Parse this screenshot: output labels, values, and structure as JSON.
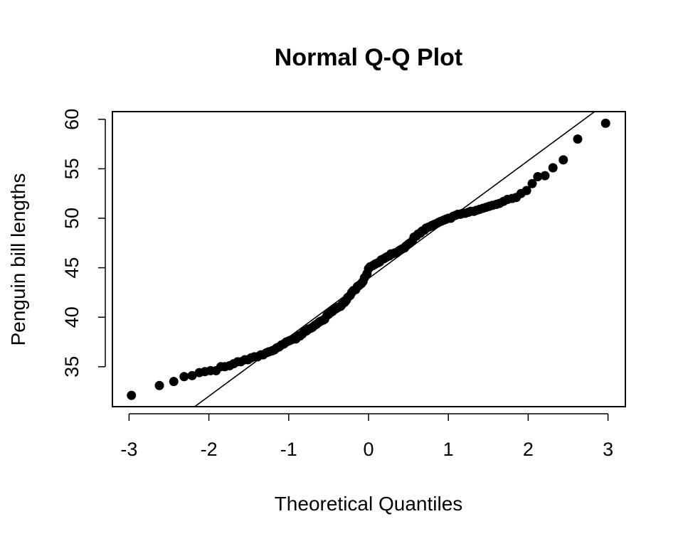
{
  "chart_data": {
    "type": "scatter",
    "title": "Normal Q-Q Plot",
    "xlabel": "Theoretical Quantiles",
    "ylabel": "Penguin bill lengths",
    "xlim": [
      -3.2,
      3.2
    ],
    "ylim": [
      31.0,
      60.7
    ],
    "x_ticks": [
      -3,
      -2,
      -1,
      0,
      1,
      2,
      3
    ],
    "y_ticks": [
      35,
      40,
      45,
      50,
      55,
      60
    ],
    "grid": false,
    "legend": "none",
    "reference_line": {
      "intercept": 43.92,
      "slope": 5.95
    },
    "series": [
      {
        "marker": "filled-circle",
        "color": "#000000",
        "points": [
          [
            -2.97,
            32.1
          ],
          [
            -2.62,
            33.1
          ],
          [
            -2.44,
            33.5
          ],
          [
            -2.31,
            34.0
          ],
          [
            -2.21,
            34.1
          ],
          [
            -2.12,
            34.4
          ],
          [
            -2.05,
            34.5
          ],
          [
            -1.98,
            34.6
          ],
          [
            -1.91,
            34.6
          ],
          [
            -1.85,
            35.0
          ],
          [
            -1.8,
            35.0
          ],
          [
            -1.74,
            35.1
          ],
          [
            -1.69,
            35.3
          ],
          [
            -1.64,
            35.5
          ],
          [
            -1.6,
            35.5
          ],
          [
            -1.55,
            35.7
          ],
          [
            -1.51,
            35.7
          ],
          [
            -1.47,
            35.9
          ],
          [
            -1.43,
            36.0
          ],
          [
            -1.39,
            36.0
          ],
          [
            -1.35,
            36.2
          ],
          [
            -1.32,
            36.2
          ],
          [
            -1.28,
            36.4
          ],
          [
            -1.25,
            36.5
          ],
          [
            -1.21,
            36.6
          ],
          [
            -1.18,
            36.7
          ],
          [
            -1.15,
            36.9
          ],
          [
            -1.12,
            37.0
          ],
          [
            -1.09,
            37.2
          ],
          [
            -1.06,
            37.3
          ],
          [
            -1.03,
            37.5
          ],
          [
            -1.0,
            37.6
          ],
          [
            -0.97,
            37.7
          ],
          [
            -0.94,
            37.8
          ],
          [
            -0.91,
            37.8
          ],
          [
            -0.88,
            38.1
          ],
          [
            -0.86,
            38.1
          ],
          [
            -0.83,
            38.3
          ],
          [
            -0.8,
            38.6
          ],
          [
            -0.78,
            38.6
          ],
          [
            -0.75,
            38.8
          ],
          [
            -0.72,
            38.9
          ],
          [
            -0.7,
            39.0
          ],
          [
            -0.67,
            39.2
          ],
          [
            -0.65,
            39.3
          ],
          [
            -0.62,
            39.5
          ],
          [
            -0.6,
            39.6
          ],
          [
            -0.57,
            39.7
          ],
          [
            -0.55,
            39.8
          ],
          [
            -0.52,
            40.2
          ],
          [
            -0.5,
            40.3
          ],
          [
            -0.47,
            40.5
          ],
          [
            -0.45,
            40.6
          ],
          [
            -0.42,
            40.8
          ],
          [
            -0.4,
            40.9
          ],
          [
            -0.38,
            41.0
          ],
          [
            -0.35,
            41.1
          ],
          [
            -0.33,
            41.3
          ],
          [
            -0.3,
            41.5
          ],
          [
            -0.28,
            41.7
          ],
          [
            -0.26,
            42.0
          ],
          [
            -0.23,
            42.2
          ],
          [
            -0.21,
            42.5
          ],
          [
            -0.19,
            42.7
          ],
          [
            -0.16,
            42.8
          ],
          [
            -0.14,
            43.1
          ],
          [
            -0.12,
            43.2
          ],
          [
            -0.09,
            43.4
          ],
          [
            -0.07,
            43.6
          ],
          [
            -0.05,
            44.0
          ],
          [
            -0.02,
            44.4
          ],
          [
            0.0,
            44.9
          ],
          [
            0.02,
            45.1
          ],
          [
            0.05,
            45.2
          ],
          [
            0.07,
            45.3
          ],
          [
            0.09,
            45.4
          ],
          [
            0.12,
            45.5
          ],
          [
            0.14,
            45.6
          ],
          [
            0.16,
            45.8
          ],
          [
            0.19,
            45.9
          ],
          [
            0.21,
            46.0
          ],
          [
            0.23,
            46.1
          ],
          [
            0.26,
            46.2
          ],
          [
            0.28,
            46.4
          ],
          [
            0.3,
            46.4
          ],
          [
            0.33,
            46.5
          ],
          [
            0.35,
            46.5
          ],
          [
            0.38,
            46.7
          ],
          [
            0.4,
            46.8
          ],
          [
            0.42,
            46.9
          ],
          [
            0.45,
            47.0
          ],
          [
            0.47,
            47.2
          ],
          [
            0.5,
            47.4
          ],
          [
            0.52,
            47.5
          ],
          [
            0.55,
            47.7
          ],
          [
            0.57,
            48.1
          ],
          [
            0.6,
            48.2
          ],
          [
            0.62,
            48.4
          ],
          [
            0.65,
            48.5
          ],
          [
            0.67,
            48.7
          ],
          [
            0.7,
            48.8
          ],
          [
            0.72,
            49.0
          ],
          [
            0.75,
            49.1
          ],
          [
            0.78,
            49.2
          ],
          [
            0.8,
            49.3
          ],
          [
            0.83,
            49.4
          ],
          [
            0.86,
            49.5
          ],
          [
            0.88,
            49.6
          ],
          [
            0.91,
            49.7
          ],
          [
            0.94,
            49.8
          ],
          [
            0.97,
            49.9
          ],
          [
            1.0,
            50.0
          ],
          [
            1.03,
            50.0
          ],
          [
            1.06,
            50.2
          ],
          [
            1.09,
            50.3
          ],
          [
            1.12,
            50.4
          ],
          [
            1.15,
            50.4
          ],
          [
            1.18,
            50.5
          ],
          [
            1.21,
            50.5
          ],
          [
            1.25,
            50.6
          ],
          [
            1.28,
            50.7
          ],
          [
            1.32,
            50.7
          ],
          [
            1.35,
            50.8
          ],
          [
            1.39,
            50.9
          ],
          [
            1.43,
            51.0
          ],
          [
            1.47,
            51.1
          ],
          [
            1.51,
            51.2
          ],
          [
            1.55,
            51.3
          ],
          [
            1.6,
            51.4
          ],
          [
            1.64,
            51.5
          ],
          [
            1.69,
            51.7
          ],
          [
            1.74,
            51.9
          ],
          [
            1.8,
            52.0
          ],
          [
            1.85,
            52.1
          ],
          [
            1.91,
            52.5
          ],
          [
            1.98,
            52.8
          ],
          [
            2.05,
            53.5
          ],
          [
            2.12,
            54.2
          ],
          [
            2.21,
            54.3
          ],
          [
            2.31,
            55.1
          ],
          [
            2.44,
            55.9
          ],
          [
            2.62,
            58.0
          ],
          [
            2.97,
            59.6
          ]
        ]
      }
    ]
  }
}
